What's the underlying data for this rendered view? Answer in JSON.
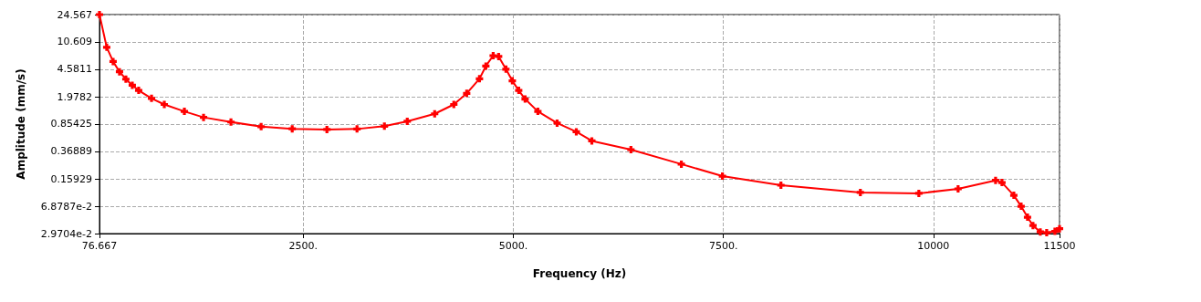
{
  "chart_data": {
    "type": "line",
    "xlabel": "Frequency (Hz)",
    "ylabel": "Amplitude (mm/s)",
    "log": "y",
    "grid": true,
    "marker": "cross",
    "line_style": "solid",
    "x": [
      76.667,
      163,
      239,
      315,
      391,
      467,
      543,
      696,
      848,
      1087,
      1315,
      1641,
      2000,
      2370,
      2783,
      3141,
      3467,
      3739,
      4065,
      4293,
      4446,
      4598,
      4674,
      4761,
      4826,
      4913,
      4989,
      5065,
      5141,
      5293,
      5522,
      5750,
      5935,
      6400,
      7000,
      7489,
      8185,
      9130,
      9826,
      10293,
      10739,
      10815,
      10956,
      11043,
      11119,
      11184,
      11271,
      11347,
      11445,
      11500
    ],
    "series": [
      {
        "color": "#ff0000",
        "values": [
          24.567,
          9.0,
          5.83,
          4.25,
          3.39,
          2.81,
          2.4,
          1.88,
          1.56,
          1.26,
          1.05,
          0.91,
          0.79,
          0.74,
          0.724,
          0.735,
          0.8,
          0.93,
          1.17,
          1.56,
          2.19,
          3.43,
          5.06,
          6.97,
          6.8,
          4.6,
          3.22,
          2.4,
          1.84,
          1.26,
          0.88,
          0.675,
          0.51,
          0.39,
          0.25,
          0.173,
          0.131,
          0.105,
          0.102,
          0.117,
          0.152,
          0.142,
          0.096,
          0.0686,
          0.049,
          0.038,
          0.0313,
          0.0305,
          0.0318,
          0.0345
        ]
      }
    ],
    "xlim": [
      76.667,
      11500
    ],
    "xticks": [
      76.667,
      {
        "value": 2500,
        "label": "2500."
      },
      {
        "value": 5000,
        "label": "5000."
      },
      {
        "value": 7500,
        "label": "7500."
      },
      {
        "value": 10000,
        "label": "10000"
      },
      11500
    ],
    "ylim": [
      0.029704,
      24.567
    ],
    "yticks": [
      {
        "value": 0.029704,
        "label": "2.9704e-2"
      },
      {
        "value": 0.068787,
        "label": "6.8787e-2"
      },
      0.15929,
      0.36889,
      0.85425,
      1.9782,
      4.5811,
      10.609,
      24.567
    ]
  }
}
